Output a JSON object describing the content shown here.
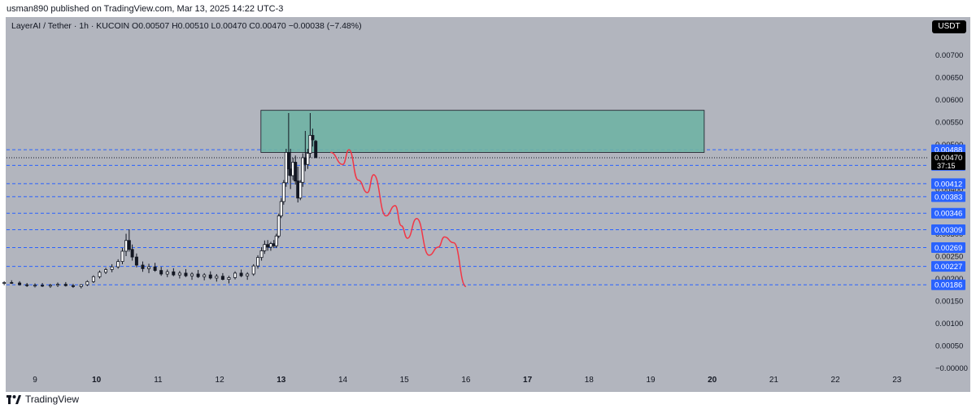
{
  "publisher": "usman890 published on TradingView.com, Mar 13, 2025 14:22 UTC-3",
  "header": {
    "symbol_info": "LayerAI / Tether · 1h · KUCOIN",
    "ohlc": "O0.00507 H0.00510 L0.00470 C0.00470 −0.00038 (−7.48%)",
    "quote_currency": "USDT"
  },
  "footer": {
    "brand": "TradingView"
  },
  "colors": {
    "background": "#b2b5be",
    "zone_fill": "#6fb3a4",
    "level_line": "#2962ff",
    "projection": "#f23645",
    "candles": "#131722"
  },
  "chart_data": {
    "type": "candlestick",
    "series_name": "LayerAI / Tether",
    "y_ticks": [
      "0.00700",
      "0.00650",
      "0.00600",
      "0.00550",
      "0.00500",
      "0.00450",
      "0.00400",
      "0.00350",
      "0.00300",
      "0.00250",
      "0.00200",
      "0.00150",
      "0.00100",
      "0.00050",
      "−0.00000"
    ],
    "x_ticks": [
      "9",
      "10",
      "11",
      "12",
      "13",
      "14",
      "15",
      "16",
      "17",
      "18",
      "19",
      "20",
      "21",
      "22",
      "23"
    ],
    "ylim": [
      -5e-05,
      0.0074
    ],
    "horizontal_levels": [
      0.00488,
      0.00453,
      0.00412,
      0.00383,
      0.00346,
      0.00309,
      0.00269,
      0.00227,
      0.00186
    ],
    "level_labels": [
      "0.00488",
      "0.00453",
      "0.00412",
      "0.00383",
      "0.00346",
      "0.00309",
      "0.00269",
      "0.00227",
      "0.00186"
    ],
    "last_price": 0.0047,
    "last_price_label": "0.00470",
    "countdown": "37:15",
    "resistance_zone": {
      "x_start": 12.67,
      "x_end": 19.87,
      "y_low": 0.00482,
      "y_high": 0.00576
    },
    "projection_path": [
      [
        13.8,
        0.00482
      ],
      [
        14.0,
        0.00455
      ],
      [
        14.1,
        0.00488
      ],
      [
        14.25,
        0.0042
      ],
      [
        14.4,
        0.00392
      ],
      [
        14.5,
        0.00432
      ],
      [
        14.7,
        0.0034
      ],
      [
        14.85,
        0.00363
      ],
      [
        14.95,
        0.00318
      ],
      [
        15.05,
        0.0029
      ],
      [
        15.2,
        0.00334
      ],
      [
        15.4,
        0.00252
      ],
      [
        15.55,
        0.0027
      ],
      [
        15.65,
        0.00293
      ],
      [
        15.8,
        0.0028
      ],
      [
        16.0,
        0.00182
      ]
    ],
    "candles": [
      [
        8.0,
        0.00192,
        0.00197,
        0.00187,
        0.00193
      ],
      [
        8.12,
        0.00193,
        0.00198,
        0.00189,
        0.00195
      ],
      [
        8.25,
        0.00195,
        0.002,
        0.0019,
        0.00192
      ],
      [
        8.37,
        0.00192,
        0.00196,
        0.00186,
        0.00189
      ],
      [
        8.5,
        0.00189,
        0.00194,
        0.00185,
        0.00191
      ],
      [
        8.62,
        0.00191,
        0.00196,
        0.00188,
        0.0019
      ],
      [
        8.75,
        0.0019,
        0.00194,
        0.00184,
        0.00186
      ],
      [
        8.87,
        0.00186,
        0.0019,
        0.00181,
        0.00184
      ],
      [
        9.0,
        0.00184,
        0.00189,
        0.0018,
        0.00185
      ],
      [
        9.12,
        0.00185,
        0.0019,
        0.00181,
        0.00183
      ],
      [
        9.25,
        0.00183,
        0.00188,
        0.00179,
        0.00185
      ],
      [
        9.37,
        0.00185,
        0.00191,
        0.00181,
        0.00187
      ],
      [
        9.5,
        0.00187,
        0.00192,
        0.00182,
        0.00184
      ],
      [
        9.62,
        0.00184,
        0.00188,
        0.00179,
        0.00182
      ],
      [
        9.75,
        0.00182,
        0.00187,
        0.00178,
        0.00186
      ],
      [
        9.85,
        0.00186,
        0.00196,
        0.00183,
        0.00193
      ],
      [
        9.95,
        0.00193,
        0.00207,
        0.0019,
        0.00204
      ],
      [
        10.05,
        0.00204,
        0.00218,
        0.002,
        0.00214
      ],
      [
        10.15,
        0.00214,
        0.00224,
        0.0021,
        0.0022
      ],
      [
        10.25,
        0.0022,
        0.00232,
        0.00214,
        0.00226
      ],
      [
        10.35,
        0.00226,
        0.00243,
        0.00222,
        0.00238
      ],
      [
        10.42,
        0.00238,
        0.00268,
        0.00232,
        0.00261
      ],
      [
        10.48,
        0.00261,
        0.003,
        0.0025,
        0.00285
      ],
      [
        10.53,
        0.00285,
        0.0031,
        0.0026,
        0.00265
      ],
      [
        10.58,
        0.00265,
        0.00276,
        0.0024,
        0.00248
      ],
      [
        10.65,
        0.00248,
        0.00256,
        0.00225,
        0.0023
      ],
      [
        10.75,
        0.0023,
        0.00238,
        0.00215,
        0.00222
      ],
      [
        10.85,
        0.00222,
        0.00233,
        0.00212,
        0.00226
      ],
      [
        10.95,
        0.00226,
        0.00235,
        0.00215,
        0.00218
      ],
      [
        11.05,
        0.00218,
        0.00226,
        0.00206,
        0.0021
      ],
      [
        11.15,
        0.0021,
        0.0022,
        0.00203,
        0.00215
      ],
      [
        11.25,
        0.00215,
        0.00223,
        0.00205,
        0.00208
      ],
      [
        11.35,
        0.00208,
        0.00217,
        0.002,
        0.00212
      ],
      [
        11.45,
        0.00212,
        0.00221,
        0.00203,
        0.00206
      ],
      [
        11.55,
        0.00206,
        0.00214,
        0.00197,
        0.0021
      ],
      [
        11.65,
        0.0021,
        0.00219,
        0.00201,
        0.00204
      ],
      [
        11.75,
        0.00204,
        0.00212,
        0.00196,
        0.00208
      ],
      [
        11.85,
        0.00208,
        0.00216,
        0.00198,
        0.00201
      ],
      [
        11.95,
        0.00201,
        0.0021,
        0.00193,
        0.00205
      ],
      [
        12.05,
        0.00205,
        0.00212,
        0.00196,
        0.00198
      ],
      [
        12.15,
        0.00198,
        0.00206,
        0.00189,
        0.00202
      ],
      [
        12.25,
        0.00202,
        0.00216,
        0.00198,
        0.00212
      ],
      [
        12.35,
        0.00212,
        0.0022,
        0.00203,
        0.00206
      ],
      [
        12.45,
        0.00206,
        0.00214,
        0.00197,
        0.0021
      ],
      [
        12.55,
        0.0021,
        0.00232,
        0.00206,
        0.00228
      ],
      [
        12.62,
        0.00228,
        0.00252,
        0.00222,
        0.00247
      ],
      [
        12.68,
        0.00247,
        0.0027,
        0.0024,
        0.00262
      ],
      [
        12.73,
        0.00262,
        0.00285,
        0.00255,
        0.00276
      ],
      [
        12.78,
        0.00276,
        0.00286,
        0.00262,
        0.0027
      ],
      [
        12.83,
        0.0027,
        0.00282,
        0.00262,
        0.00278
      ],
      [
        12.88,
        0.00278,
        0.00286,
        0.00268,
        0.00273
      ],
      [
        12.92,
        0.00273,
        0.003,
        0.00268,
        0.00295
      ],
      [
        12.96,
        0.00295,
        0.00345,
        0.0029,
        0.0034
      ],
      [
        13.0,
        0.0034,
        0.0038,
        0.00335,
        0.00372
      ],
      [
        13.04,
        0.00372,
        0.0042,
        0.00365,
        0.00414
      ],
      [
        13.08,
        0.00414,
        0.0049,
        0.00405,
        0.00482
      ],
      [
        13.12,
        0.00482,
        0.0057,
        0.0043,
        0.00445
      ],
      [
        13.15,
        0.00445,
        0.0049,
        0.004,
        0.0043
      ],
      [
        13.19,
        0.0043,
        0.0047,
        0.0042,
        0.0046
      ],
      [
        13.23,
        0.0046,
        0.00475,
        0.0041,
        0.00418
      ],
      [
        13.27,
        0.00418,
        0.0045,
        0.0037,
        0.0038
      ],
      [
        13.31,
        0.0038,
        0.0042,
        0.00375,
        0.00415
      ],
      [
        13.35,
        0.00415,
        0.0048,
        0.00405,
        0.0047
      ],
      [
        13.39,
        0.0047,
        0.0053,
        0.0044,
        0.00455
      ],
      [
        13.43,
        0.00455,
        0.0049,
        0.00445,
        0.0048
      ],
      [
        13.47,
        0.0048,
        0.0057,
        0.0047,
        0.0052
      ],
      [
        13.51,
        0.0052,
        0.00535,
        0.00495,
        0.0051
      ],
      [
        13.56,
        0.00507,
        0.0051,
        0.0047,
        0.0047
      ]
    ]
  }
}
